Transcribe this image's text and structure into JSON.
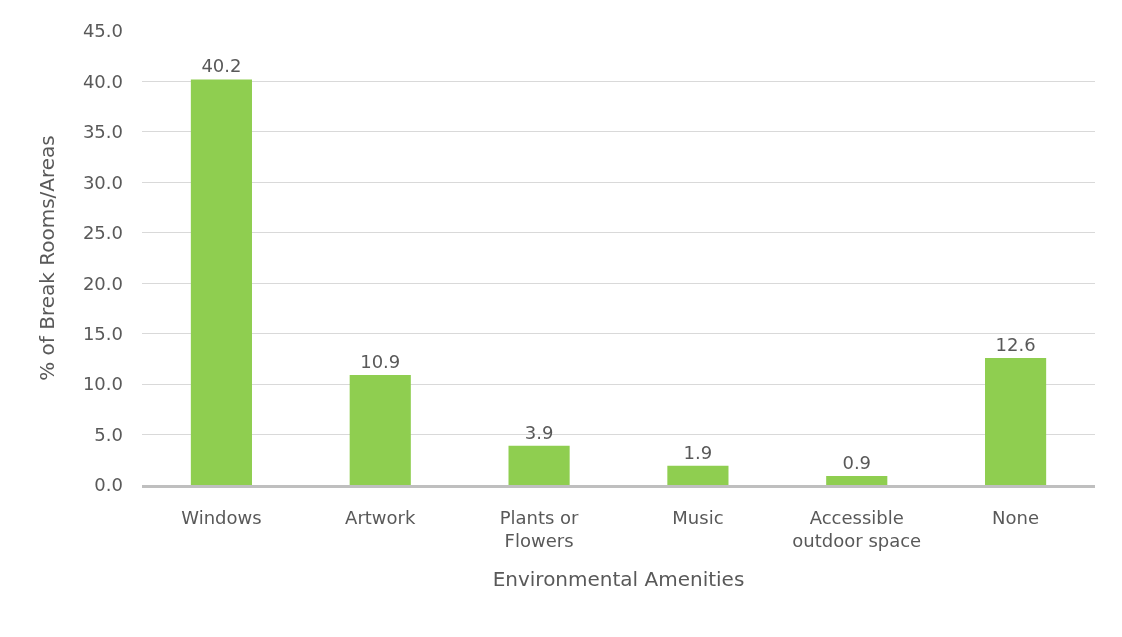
{
  "chart_data": {
    "type": "bar",
    "xlabel": "Environmental Amenities",
    "ylabel": "% of Break Rooms/Areas",
    "categories": [
      "Windows",
      "Artwork",
      "Plants or Flowers",
      "Music",
      "Accessible outdoor space",
      "None"
    ],
    "values": [
      40.2,
      10.9,
      3.9,
      1.9,
      0.9,
      12.6
    ],
    "color": "#8fce50",
    "ylim": [
      0,
      45
    ],
    "yticks": [
      {
        "value": 0,
        "label": "0.0"
      },
      {
        "value": 5,
        "label": "5.0"
      },
      {
        "value": 10,
        "label": "10.0"
      },
      {
        "value": 15,
        "label": "15.0"
      },
      {
        "value": 20,
        "label": "20.0"
      },
      {
        "value": 25,
        "label": "25.0"
      },
      {
        "value": 30,
        "label": "30.0"
      },
      {
        "value": 35,
        "label": "35.0"
      },
      {
        "value": 40,
        "label": "40.0"
      },
      {
        "value": 45,
        "label": "45.0"
      }
    ],
    "data_labels": true,
    "grid": "y"
  }
}
